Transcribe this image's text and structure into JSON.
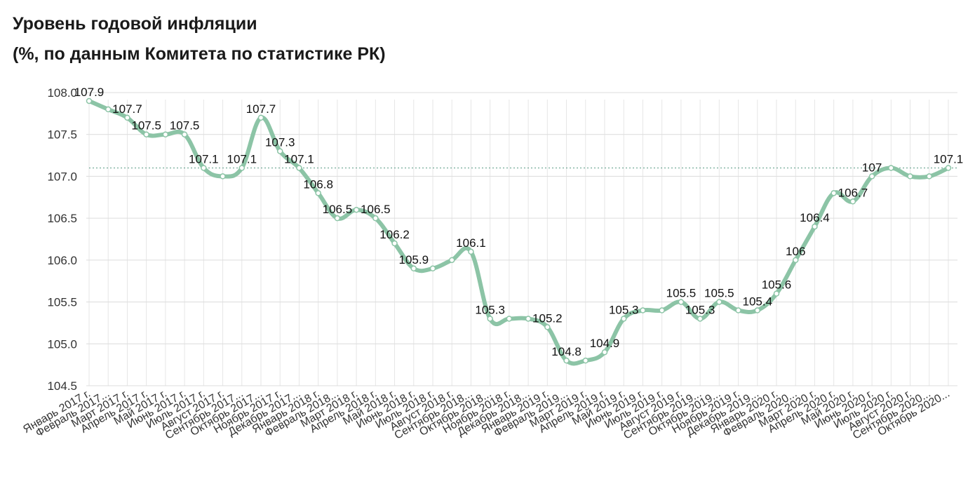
{
  "title": "Уровень годовой инфляции",
  "subtitle": "(%, по данным Комитета по статистике РК)",
  "chart_data": {
    "type": "line",
    "title": "Уровень годовой инфляции",
    "subtitle": "(%, по данным Комитета по статистике РК)",
    "xlabel": "",
    "ylabel": "",
    "ylim": [
      104.5,
      108.0
    ],
    "yticks": [
      "104.5",
      "105.0",
      "105.5",
      "106.0",
      "106.5",
      "107.0",
      "107.5",
      "108.0"
    ],
    "grid": true,
    "reference_line": 107.1,
    "series_color": "#8cc4a6",
    "categories": [
      "Январь 2017 г.",
      "Февраль 2017...",
      "Март 2017 г.",
      "Апрель 2017 г.",
      "Май 2017 г.",
      "Июнь 2017 г.",
      "Июль 2017 г.",
      "Август 2017 г.",
      "Сентябрь 2017...",
      "Октябрь 2017...",
      "Ноябрь 2017 г.",
      "Декабрь 2017...",
      "Январь 2018 г.",
      "Февраль 2018...",
      "Март 2018 г.",
      "Апрель 2018 г.",
      "Май 2018 г.",
      "Июнь 2018 г.",
      "Июль 2018 г.",
      "Август 2018 г.",
      "Сентябрь 2018...",
      "Октябрь 2018...",
      "Ноябрь 2018 г.",
      "Декабрь 2018...",
      "Январь 2019 г.",
      "Февраль 2019...",
      "Март 2019 г.",
      "Апрель 2019 г.",
      "Май 2019 г.",
      "Июнь 2019 г.",
      "Июль 2019 г.",
      "Август 2019 г.",
      "Сентябрь 2019...",
      "Октябрь 2019...",
      "Ноябрь 2019 г.",
      "Декабрь 2019...",
      "Январь 2020 г.",
      "Февраль 2020...",
      "Март 2020 г.",
      "Апрель 2020 г.",
      "Май 2020 г.",
      "Июнь 2020 г.",
      "Июль 2020 г.",
      "Август 2020 г.",
      "Сентябрь 2020...",
      "Октябрь 2020..."
    ],
    "values": [
      107.9,
      107.8,
      107.7,
      107.5,
      107.5,
      107.5,
      107.1,
      107.0,
      107.1,
      107.7,
      107.3,
      107.1,
      106.8,
      106.5,
      106.6,
      106.5,
      106.2,
      105.9,
      105.9,
      106.0,
      106.1,
      105.3,
      105.3,
      105.3,
      105.2,
      104.8,
      104.8,
      104.9,
      105.3,
      105.4,
      105.4,
      105.5,
      105.3,
      105.5,
      105.4,
      105.4,
      105.6,
      106.0,
      106.4,
      106.8,
      106.7,
      107.0,
      107.1,
      107.0,
      107.0,
      107.1
    ],
    "data_labels": [
      {
        "index": 0,
        "text": "107.9"
      },
      {
        "index": 2,
        "text": "107.7"
      },
      {
        "index": 3,
        "text": "107.5"
      },
      {
        "index": 5,
        "text": "107.5"
      },
      {
        "index": 6,
        "text": "107.1"
      },
      {
        "index": 8,
        "text": "107.1"
      },
      {
        "index": 9,
        "text": "107.7"
      },
      {
        "index": 10,
        "text": "107.3"
      },
      {
        "index": 11,
        "text": "107.1"
      },
      {
        "index": 12,
        "text": "106.8"
      },
      {
        "index": 13,
        "text": "106.5"
      },
      {
        "index": 15,
        "text": "106.5"
      },
      {
        "index": 16,
        "text": "106.2"
      },
      {
        "index": 17,
        "text": "105.9"
      },
      {
        "index": 20,
        "text": "106.1"
      },
      {
        "index": 21,
        "text": "105.3"
      },
      {
        "index": 24,
        "text": "105.2"
      },
      {
        "index": 25,
        "text": "104.8"
      },
      {
        "index": 27,
        "text": "104.9"
      },
      {
        "index": 28,
        "text": "105.3"
      },
      {
        "index": 31,
        "text": "105.5"
      },
      {
        "index": 32,
        "text": "105.3"
      },
      {
        "index": 33,
        "text": "105.5"
      },
      {
        "index": 35,
        "text": "105.4"
      },
      {
        "index": 36,
        "text": "105.6"
      },
      {
        "index": 37,
        "text": "106"
      },
      {
        "index": 38,
        "text": "106.4"
      },
      {
        "index": 40,
        "text": "106.7"
      },
      {
        "index": 41,
        "text": "107"
      },
      {
        "index": 45,
        "text": "107.1"
      }
    ]
  }
}
